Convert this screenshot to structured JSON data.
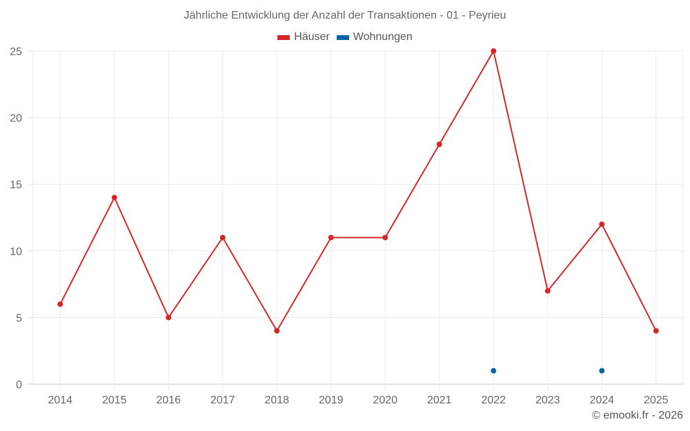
{
  "chart_data": {
    "type": "line",
    "title": "Jährliche Entwicklung der Anzahl der Transaktionen - 01 - Peyrieu",
    "categories": [
      "2014",
      "2015",
      "2016",
      "2017",
      "2018",
      "2019",
      "2020",
      "2021",
      "2022",
      "2023",
      "2024",
      "2025"
    ],
    "series": [
      {
        "name": "Häuser",
        "color": "#d62728",
        "values": [
          6,
          14,
          5,
          11,
          4,
          11,
          11,
          18,
          25,
          7,
          12,
          4
        ]
      },
      {
        "name": "Wohnungen",
        "color": "#0a66a8",
        "values": [
          null,
          null,
          null,
          null,
          null,
          null,
          null,
          null,
          1,
          null,
          1,
          null
        ]
      }
    ],
    "xlabel": "",
    "ylabel": "",
    "ylim": [
      0,
      25
    ],
    "yticks": [
      0,
      5,
      10,
      15,
      20,
      25
    ],
    "grid": true,
    "legend_position": "top"
  },
  "footer": "© emooki.fr - 2026"
}
